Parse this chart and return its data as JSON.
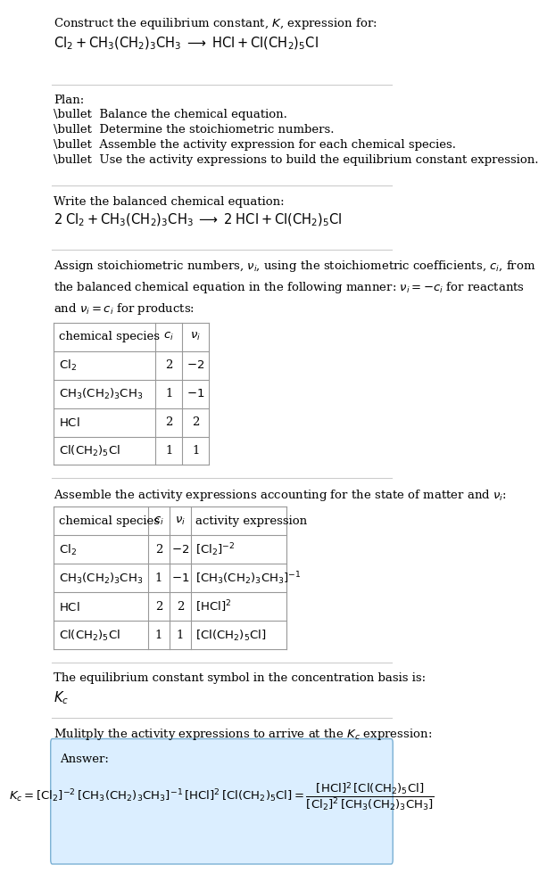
{
  "title_line1": "Construct the equilibrium constant, $K$, expression for:",
  "title_line2": "$\\mathrm{Cl_2 + CH_3(CH_2)_3CH_3 \\;\\longrightarrow\\; HCl + Cl(CH_2)_5Cl}$",
  "plan_header": "Plan:",
  "plan_items": [
    "\\bullet  Balance the chemical equation.",
    "\\bullet  Determine the stoichiometric numbers.",
    "\\bullet  Assemble the activity expression for each chemical species.",
    "\\bullet  Use the activity expressions to build the equilibrium constant expression."
  ],
  "balanced_header": "Write the balanced chemical equation:",
  "balanced_eq": "$\\mathrm{2\\;Cl_2 + CH_3(CH_2)_3CH_3 \\;\\longrightarrow\\; 2\\;HCl + Cl(CH_2)_5Cl}$",
  "stoich_intro": "Assign stoichiometric numbers, $\\nu_i$, using the stoichiometric coefficients, $c_i$, from\nthe balanced chemical equation in the following manner: $\\nu_i = -c_i$ for reactants\nand $\\nu_i = c_i$ for products:",
  "table1_headers": [
    "chemical species",
    "$c_i$",
    "$\\nu_i$"
  ],
  "table1_rows": [
    [
      "$\\mathrm{Cl_2}$",
      "2",
      "$-2$"
    ],
    [
      "$\\mathrm{CH_3(CH_2)_3CH_3}$",
      "1",
      "$-1$"
    ],
    [
      "$\\mathrm{HCl}$",
      "2",
      "2"
    ],
    [
      "$\\mathrm{Cl(CH_2)_5Cl}$",
      "1",
      "1"
    ]
  ],
  "assemble_intro": "Assemble the activity expressions accounting for the state of matter and $\\nu_i$:",
  "table2_headers": [
    "chemical species",
    "$c_i$",
    "$\\nu_i$",
    "activity expression"
  ],
  "table2_rows": [
    [
      "$\\mathrm{Cl_2}$",
      "2",
      "$-2$",
      "$[\\mathrm{Cl_2}]^{-2}$"
    ],
    [
      "$\\mathrm{CH_3(CH_2)_3CH_3}$",
      "1",
      "$-1$",
      "$[\\mathrm{CH_3(CH_2)_3CH_3}]^{-1}$"
    ],
    [
      "$\\mathrm{HCl}$",
      "2",
      "2",
      "$[\\mathrm{HCl}]^2$"
    ],
    [
      "$\\mathrm{Cl(CH_2)_5Cl}$",
      "1",
      "1",
      "$[\\mathrm{Cl(CH_2)_5Cl}]$"
    ]
  ],
  "kc_text": "The equilibrium constant symbol in the concentration basis is:",
  "kc_symbol": "$K_c$",
  "multiply_text": "Mulitply the activity expressions to arrive at the $K_c$ expression:",
  "answer_label": "Answer:",
  "answer_line1": "$K_c = [\\mathrm{Cl_2}]^{-2}\\,[\\mathrm{CH_3(CH_2)_3CH_3}]^{-1}\\,[\\mathrm{HCl}]^2\\,[\\mathrm{Cl(CH_2)_5Cl}] = \\dfrac{[\\mathrm{HCl}]^2\\,[\\mathrm{Cl(CH_2)_5Cl}]}{[\\mathrm{Cl_2}]^2\\,[\\mathrm{CH_3(CH_2)_3CH_3}]}$",
  "bg_color": "#ffffff",
  "answer_bg_color": "#dbeeff",
  "table_header_color": "#f0f0f0",
  "line_color": "#cccccc",
  "text_color": "#000000",
  "font_size": 9.5
}
